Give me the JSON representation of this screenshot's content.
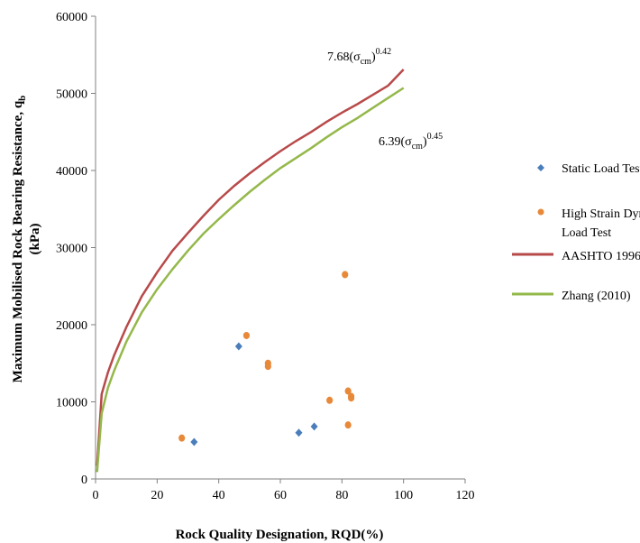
{
  "chart_data": {
    "type": "scatter",
    "xlabel": "Rock Quality Designation, RQD(%)",
    "ylabel_line1": "Maximum Mobilised Rock Bearing Resistance, q",
    "ylabel_sub": "b",
    "ylabel_line2": "(kPa)",
    "xlim": [
      0,
      120
    ],
    "ylim": [
      0,
      60000
    ],
    "xticks": [
      0,
      20,
      40,
      60,
      80,
      100,
      120
    ],
    "yticks": [
      0,
      10000,
      20000,
      30000,
      40000,
      50000,
      60000
    ],
    "xtick_labels": [
      "0",
      "20",
      "40",
      "60",
      "80",
      "100",
      "120"
    ],
    "ytick_labels": [
      "0",
      "10000",
      "20000",
      "30000",
      "40000",
      "50000",
      "60000"
    ],
    "grid": false,
    "legend_position": "right",
    "series": [
      {
        "name": "Static Load Test",
        "kind": "scatter",
        "marker": "diamond",
        "color": "#4a7ebb",
        "points": [
          [
            32,
            4800
          ],
          [
            46.5,
            17200
          ],
          [
            66,
            6000
          ],
          [
            71,
            6800
          ]
        ]
      },
      {
        "name": "High Strain Dynamic Load Test",
        "legend_lines": [
          "High Strain Dynamic",
          "Load Test"
        ],
        "kind": "scatter",
        "marker": "circle",
        "color": "#e8893a",
        "points": [
          [
            28,
            5300
          ],
          [
            49,
            18600
          ],
          [
            56,
            15000
          ],
          [
            56,
            14600
          ],
          [
            76,
            10200
          ],
          [
            81,
            26500
          ],
          [
            82,
            11400
          ],
          [
            82,
            7000
          ],
          [
            83,
            10700
          ],
          [
            83,
            10500
          ]
        ]
      },
      {
        "name": "AASHTO 1996",
        "kind": "line",
        "color": "#b84a4a",
        "points": [
          [
            0.5,
            1700
          ],
          [
            2,
            11000
          ],
          [
            4,
            13800
          ],
          [
            6,
            16000
          ],
          [
            10,
            19700
          ],
          [
            15,
            23700
          ],
          [
            20,
            26800
          ],
          [
            25,
            29600
          ],
          [
            30,
            31900
          ],
          [
            35,
            34100
          ],
          [
            40,
            36200
          ],
          [
            45,
            38000
          ],
          [
            50,
            39600
          ],
          [
            55,
            41100
          ],
          [
            60,
            42500
          ],
          [
            65,
            43800
          ],
          [
            70,
            45000
          ],
          [
            75,
            46300
          ],
          [
            80,
            47500
          ],
          [
            85,
            48600
          ],
          [
            90,
            49800
          ],
          [
            95,
            51000
          ],
          [
            100,
            53100
          ]
        ]
      },
      {
        "name": "Zhang (2010)",
        "kind": "line",
        "color": "#94b84a",
        "points": [
          [
            0.5,
            900
          ],
          [
            2,
            8500
          ],
          [
            4,
            11800
          ],
          [
            6,
            14000
          ],
          [
            10,
            17800
          ],
          [
            15,
            21600
          ],
          [
            20,
            24600
          ],
          [
            25,
            27200
          ],
          [
            30,
            29600
          ],
          [
            35,
            31800
          ],
          [
            40,
            33700
          ],
          [
            45,
            35500
          ],
          [
            50,
            37200
          ],
          [
            55,
            38800
          ],
          [
            60,
            40300
          ],
          [
            65,
            41600
          ],
          [
            70,
            42900
          ],
          [
            75,
            44300
          ],
          [
            80,
            45600
          ],
          [
            85,
            46800
          ],
          [
            90,
            48100
          ],
          [
            95,
            49400
          ],
          [
            100,
            50700
          ]
        ]
      }
    ],
    "annotations": [
      {
        "id": "aashto",
        "prefix": "7.68(σ",
        "sub": "cm",
        "close": ")",
        "sup": "0.42"
      },
      {
        "id": "zhang",
        "prefix": "6.39(σ",
        "sub": "cm",
        "close": ")",
        "sup": "0.45"
      }
    ]
  }
}
